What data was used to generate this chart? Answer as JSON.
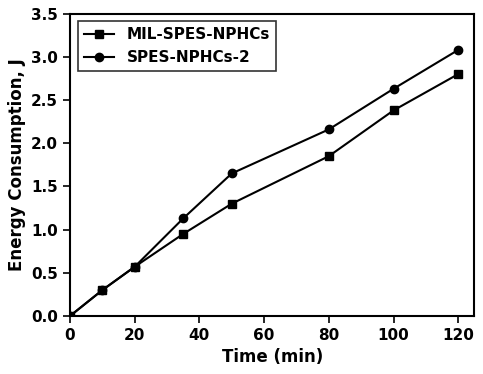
{
  "series": [
    {
      "label": "MIL-SPES-NPHCs",
      "x": [
        0,
        10,
        20,
        35,
        50,
        80,
        100,
        120
      ],
      "y": [
        0.0,
        0.3,
        0.57,
        0.95,
        1.3,
        1.85,
        2.38,
        2.8
      ],
      "marker": "s",
      "color": "#000000",
      "linewidth": 1.5,
      "markersize": 6
    },
    {
      "label": "SPES-NPHCs-2",
      "x": [
        0,
        10,
        20,
        35,
        50,
        80,
        100,
        120
      ],
      "y": [
        0.0,
        0.3,
        0.57,
        1.13,
        1.65,
        2.16,
        2.63,
        3.08
      ],
      "marker": "o",
      "color": "#000000",
      "linewidth": 1.5,
      "markersize": 6
    }
  ],
  "xlabel": "Time (min)",
  "ylabel": "Energy Consumption, J",
  "xlim": [
    0,
    125
  ],
  "ylim": [
    0.0,
    3.5
  ],
  "xticks": [
    0,
    20,
    40,
    60,
    80,
    100,
    120
  ],
  "yticks": [
    0.0,
    0.5,
    1.0,
    1.5,
    2.0,
    2.5,
    3.0,
    3.5
  ],
  "legend_loc": "upper left",
  "axis_fontsize": 12,
  "tick_fontsize": 11,
  "legend_fontsize": 11,
  "background_color": "#ffffff",
  "border_color": "#000000",
  "font_family": "Times New Roman"
}
